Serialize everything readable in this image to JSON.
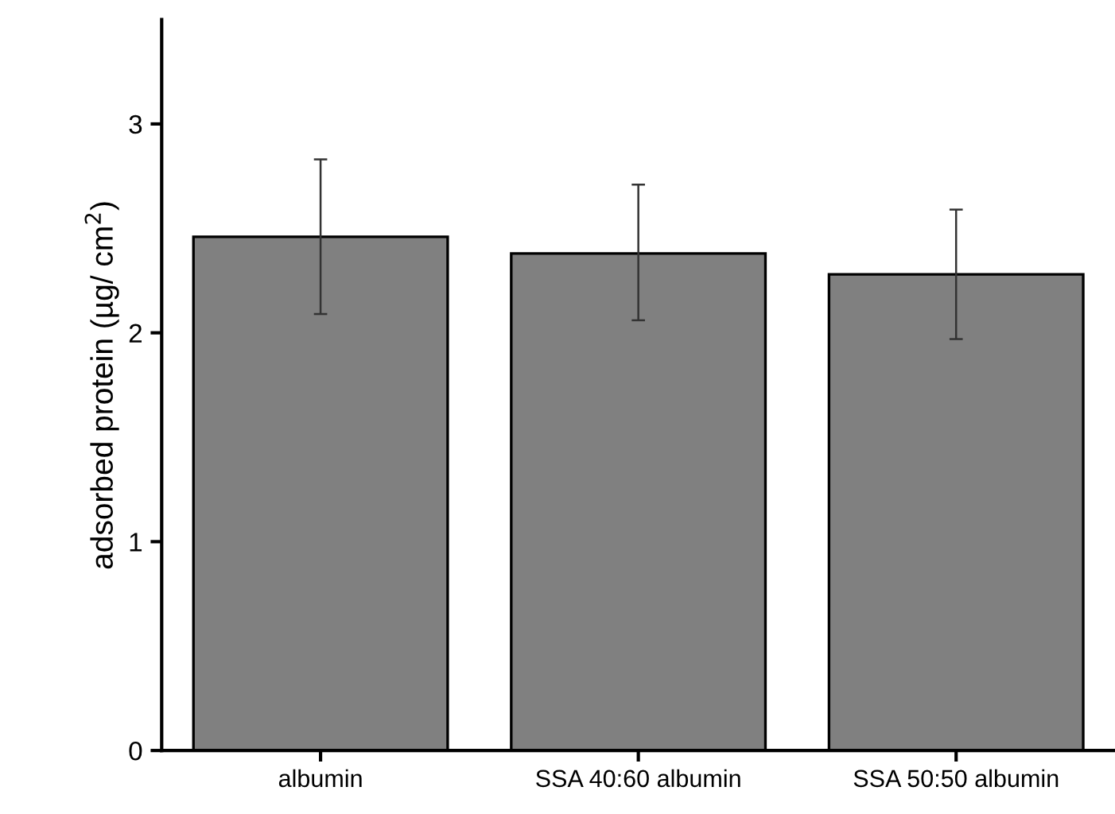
{
  "chart_data": {
    "type": "bar",
    "ylabel": "adsorbed protein (µg/ cm$^{2}$)",
    "categories": [
      "albumin",
      "SSA 40:60 albumin",
      "SSA 50:50 albumin"
    ],
    "values": [
      2.46,
      2.38,
      2.28
    ],
    "color": "#808080",
    "errors": [
      [
        2.09,
        2.83
      ],
      [
        2.06,
        2.71
      ],
      [
        1.97,
        2.59
      ]
    ],
    "ylim": [
      0,
      3.5
    ],
    "yticks": [
      0,
      1,
      2,
      3
    ],
    "grid": false
  }
}
